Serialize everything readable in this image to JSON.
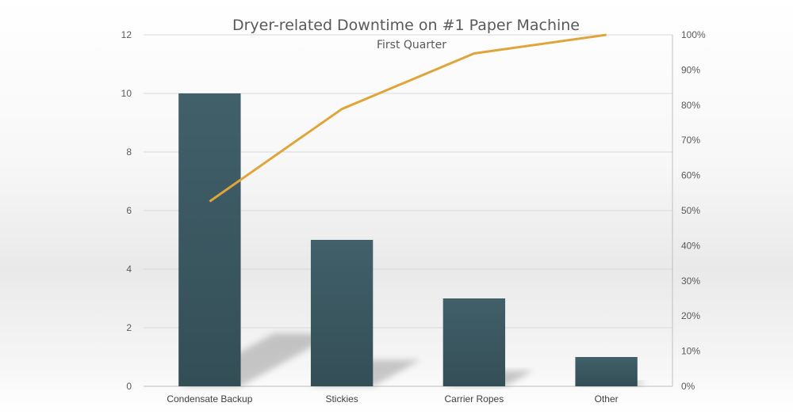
{
  "chart_data": {
    "type": "bar",
    "title": "Dryer-related Downtime on #1 Paper Machine",
    "subtitle": "First Quarter",
    "categories": [
      "Condensate Backup",
      "Stickies",
      "Carrier Ropes",
      "Other"
    ],
    "series": [
      {
        "type": "bar",
        "values": [
          10,
          5,
          3,
          1
        ],
        "axis": "left"
      },
      {
        "type": "line",
        "values": [
          52.6,
          78.9,
          94.7,
          100
        ],
        "axis": "right"
      }
    ],
    "y_left": {
      "range": [
        0,
        12
      ],
      "ticks": [
        "0",
        "2",
        "4",
        "6",
        "8",
        "10",
        "12"
      ]
    },
    "y_right": {
      "range": [
        0,
        100
      ],
      "ticks": [
        "0%",
        "10%",
        "20%",
        "30%",
        "40%",
        "50%",
        "60%",
        "70%",
        "80%",
        "90%",
        "100%"
      ]
    },
    "grid": true,
    "legend": "none",
    "colors": {
      "bar": "#3d5a63",
      "line": "#e0a53a",
      "text": "#595959"
    }
  }
}
